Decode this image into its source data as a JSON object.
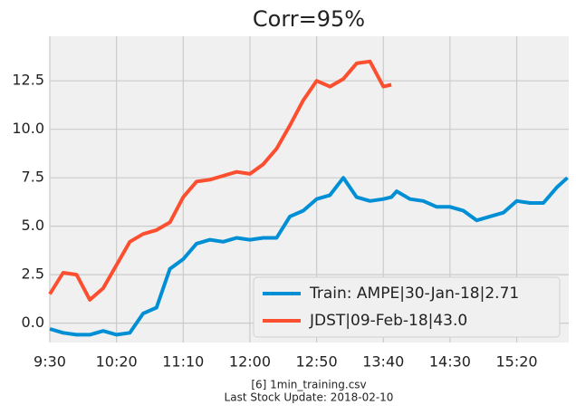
{
  "chart_data": {
    "type": "line",
    "title": "Corr=95%",
    "caption": [
      "[6] 1min_training.csv",
      "Last Stock Update: 2018-02-10"
    ],
    "x": [
      "9:30",
      "9:40",
      "9:50",
      "10:00",
      "10:10",
      "10:20",
      "10:30",
      "10:40",
      "10:50",
      "11:00",
      "11:10",
      "11:20",
      "11:30",
      "11:40",
      "11:50",
      "12:00",
      "12:10",
      "12:20",
      "12:30",
      "12:40",
      "12:50",
      "13:00",
      "13:10",
      "13:20",
      "13:30",
      "13:40",
      "13:46",
      "13:50",
      "14:00",
      "14:10",
      "14:20",
      "14:30",
      "14:40",
      "14:50",
      "15:00",
      "15:10",
      "15:20",
      "15:30",
      "15:40",
      "15:50",
      "15:58"
    ],
    "series": [
      {
        "name": "Train: AMPE|30-Jan-18|2.71",
        "color": "#008fd5",
        "values": [
          -0.3,
          -0.5,
          -0.6,
          -0.6,
          -0.4,
          -0.6,
          -0.5,
          0.5,
          0.8,
          2.8,
          3.3,
          4.1,
          4.3,
          4.2,
          4.4,
          4.3,
          4.4,
          4.4,
          5.5,
          5.8,
          6.4,
          6.6,
          7.5,
          6.5,
          6.3,
          6.4,
          6.5,
          6.8,
          6.4,
          6.3,
          6.0,
          6.0,
          5.8,
          5.3,
          5.5,
          5.7,
          6.3,
          6.2,
          6.2,
          7.0,
          7.5
        ]
      },
      {
        "name": "JDST|09-Feb-18|43.0",
        "color": "#fc4f30",
        "values": [
          1.5,
          2.6,
          2.5,
          1.2,
          1.8,
          3.0,
          4.2,
          4.6,
          4.8,
          5.2,
          6.5,
          7.3,
          7.4,
          7.6,
          7.8,
          7.7,
          8.2,
          9.0,
          10.2,
          11.5,
          12.5,
          12.2,
          12.6,
          13.4,
          13.5,
          12.2,
          12.3,
          null,
          null,
          null,
          null,
          null,
          null,
          null,
          null,
          null,
          null,
          null,
          null,
          null,
          null
        ]
      }
    ],
    "xlim": [
      "9:30",
      "15:59"
    ],
    "xticks": [
      "9:30",
      "10:20",
      "11:10",
      "12:00",
      "12:50",
      "13:40",
      "14:30",
      "15:20"
    ],
    "ylim": [
      -1,
      14.8
    ],
    "yticks": [
      {
        "value": 0,
        "label": "0.0"
      },
      2.5,
      {
        "value": 5,
        "label": "5.0"
      },
      7.5,
      {
        "value": 10,
        "label": "10.0"
      },
      12.5
    ],
    "grid": true,
    "legend": "lower right"
  }
}
